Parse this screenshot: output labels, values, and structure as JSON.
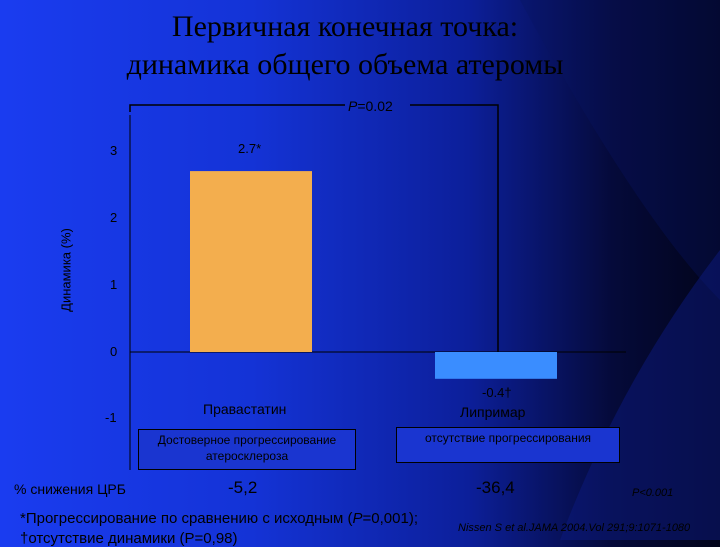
{
  "title_line1": "Первичная конечная точка:",
  "title_line2": "динамика общего объема атеромы",
  "p_bracket_prefix": "P",
  "p_bracket_value": "=0.02",
  "chart_data": {
    "type": "bar",
    "ylabel": "Динамика (%)",
    "ylim": [
      -1,
      3
    ],
    "yticks": [
      "3",
      "2",
      "1",
      "0",
      "-1"
    ],
    "categories": [
      "Правастатин",
      "Липримар"
    ],
    "values": [
      2.7,
      -0.4
    ],
    "data_labels": [
      "2.7*",
      "-0.4†"
    ],
    "colors": [
      "#f3ae4e",
      "#3a8dff"
    ]
  },
  "status_boxes": [
    "Достоверное прогрессирование атеросклероза",
    "отсутствие прогрессирования"
  ],
  "crp_label": "% снижения ЦРБ",
  "crp_values": [
    "-5,2",
    "-36,4"
  ],
  "p_crp": "P<0.001",
  "footnote1_prefix": "*Прогрессирование по сравнению с исходным (",
  "footnote1_p": "P",
  "footnote1_suffix": "=0,001);",
  "footnote2": "†отсутствие динамики (P=0,98)",
  "reference": "Nissen S et al.JAMA 2004.Vol 291;9:1071-1080"
}
